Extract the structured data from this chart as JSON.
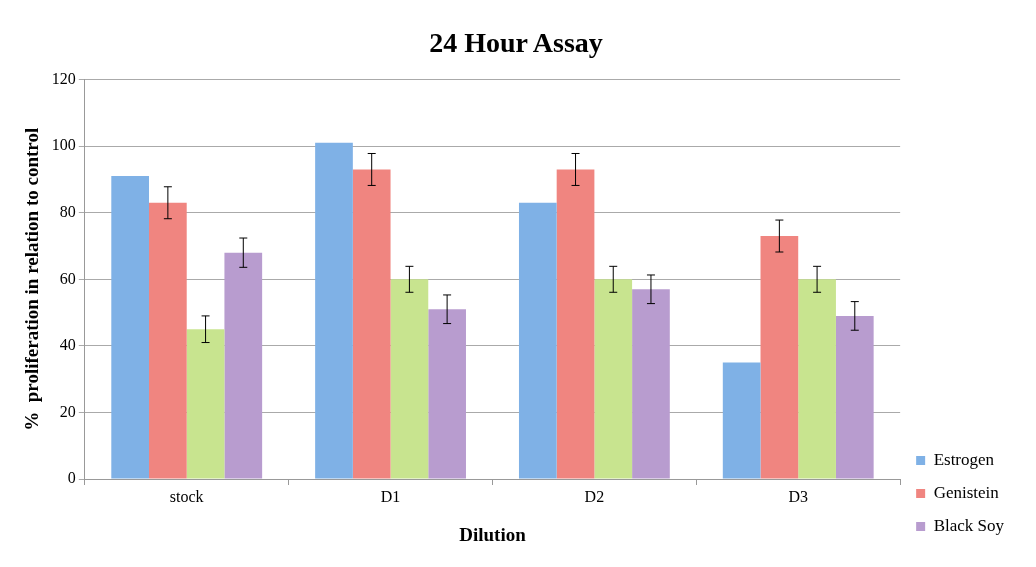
{
  "chart_data": {
    "type": "bar",
    "title": "24 Hour Assay",
    "xlabel": "Dilution",
    "ylabel": "%  proliferation in relation to control",
    "categories": [
      "stock",
      "D1",
      "D2",
      "D3"
    ],
    "series": [
      {
        "name": "Estrogen",
        "color": "#7fb1e6",
        "values": [
          91,
          101,
          83,
          35
        ]
      },
      {
        "name": "Genistein",
        "color": "#f08580",
        "values": [
          83,
          93,
          93,
          73
        ],
        "errors": [
          4.8,
          4.8,
          4.8,
          4.8
        ]
      },
      {
        "color": "#c8e48f",
        "values": [
          45,
          60,
          60,
          60
        ],
        "errors": [
          4,
          3.9,
          3.9,
          3.9
        ]
      },
      {
        "name": "Black Soy",
        "color": "#b89ccf",
        "values": [
          68,
          51,
          57,
          49
        ],
        "errors": [
          4.4,
          4.3,
          4.3,
          4.3
        ]
      }
    ],
    "ylim": [
      0,
      120
    ],
    "yticks": [
      0,
      20,
      40,
      60,
      80,
      100,
      120
    ],
    "grid": "y",
    "legend": "right"
  }
}
